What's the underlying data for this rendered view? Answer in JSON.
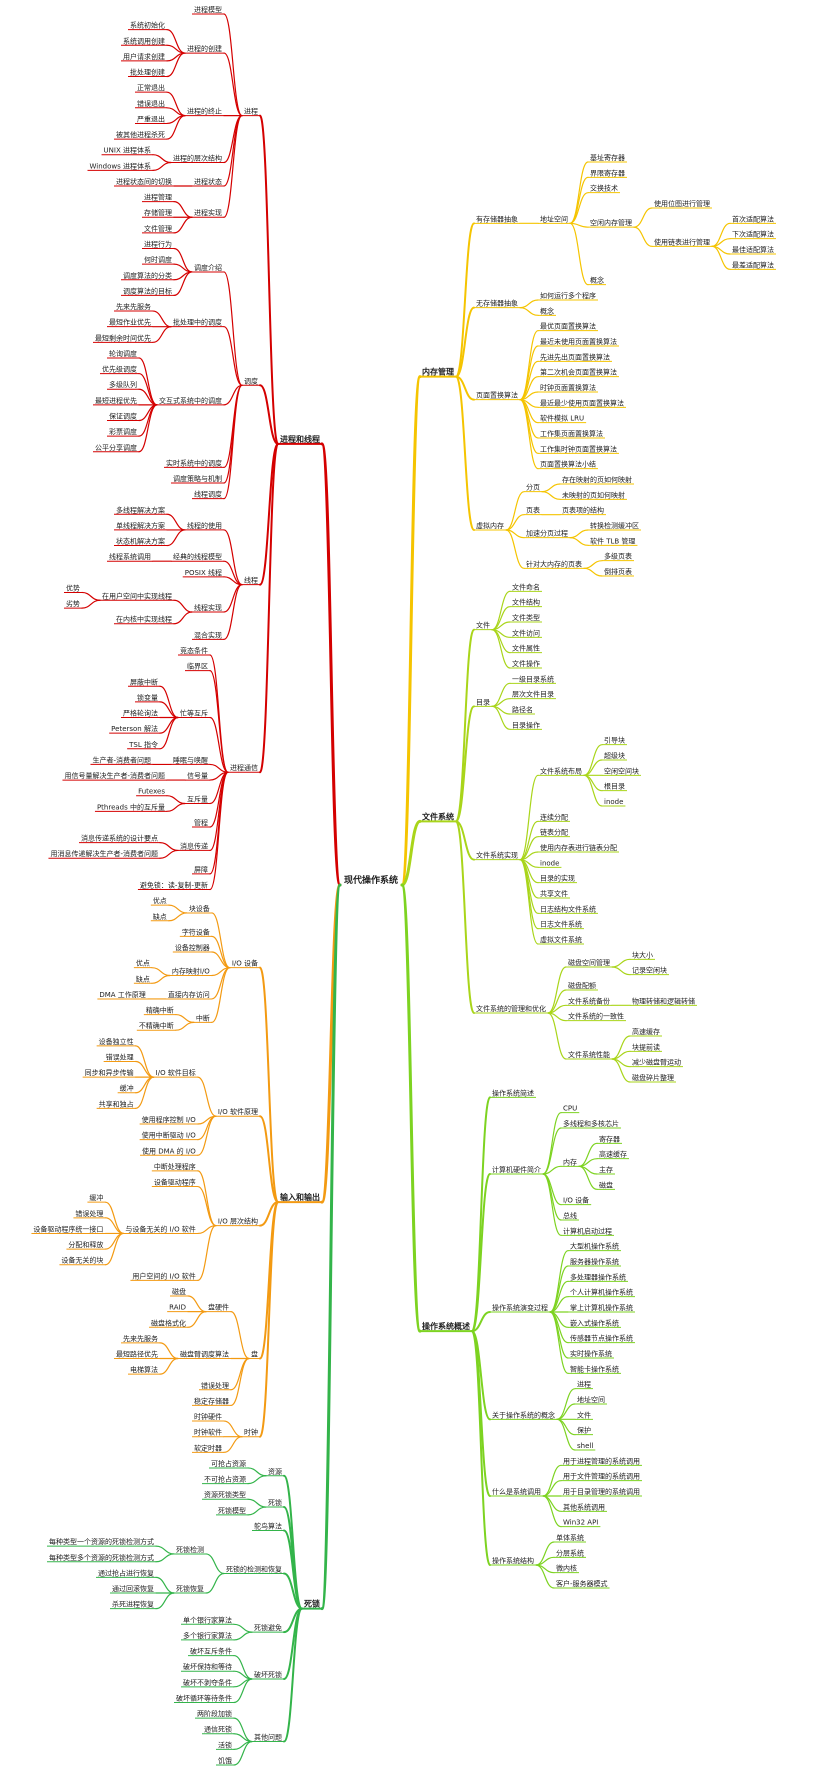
{
  "root": {
    "label": "现代操作系统",
    "left": [
      {
        "label": "进程和线程",
        "color": "#d40000",
        "children": [
          {
            "label": "进程",
            "children": [
              "进程模型",
              {
                "label": "进程的创建",
                "children": [
                  "系统初始化",
                  "系统调用创建",
                  "用户请求创建",
                  "批处理创建"
                ]
              },
              {
                "label": "进程的终止",
                "children": [
                  "正常退出",
                  "错误退出",
                  "严重退出",
                  "被其他进程杀死"
                ]
              },
              {
                "label": "进程的层次结构",
                "children": [
                  "UNIX 进程体系",
                  "Windows 进程体系"
                ]
              },
              {
                "label": "进程状态",
                "children": [
                  "进程状态间的切换"
                ]
              },
              {
                "label": "进程实现",
                "children": [
                  "进程管理",
                  "存储管理",
                  "文件管理"
                ]
              }
            ]
          },
          {
            "label": "调度",
            "children": [
              {
                "label": "调度介绍",
                "children": [
                  "进程行为",
                  "何时调度",
                  "调度算法的分类",
                  "调度算法的目标"
                ]
              },
              {
                "label": "批处理中的调度",
                "children": [
                  "先来先服务",
                  "最短作业优先",
                  "最短剩余时间优先"
                ]
              },
              {
                "label": "交互式系统中的调度",
                "children": [
                  "轮询调度",
                  "优先级调度",
                  "多级队列",
                  "最短进程优先",
                  "保证调度",
                  "彩票调度",
                  "公平分享调度"
                ]
              },
              "实时系统中的调度",
              "调度策略与机制",
              "线程调度"
            ]
          },
          {
            "label": "线程",
            "children": [
              {
                "label": "线程的使用",
                "children": [
                  "多线程解决方案",
                  "单线程解决方案",
                  "状态机解决方案"
                ]
              },
              {
                "label": "经典的线程模型",
                "children": [
                  "线程系统调用"
                ]
              },
              "POSIX 线程",
              {
                "label": "线程实现",
                "children": [
                  {
                    "label": "在用户空间中实现线程",
                    "children": [
                      "优势",
                      "劣势"
                    ]
                  },
                  "在内核中实现线程"
                ]
              },
              "混合实现"
            ]
          },
          {
            "label": "进程通信",
            "children": [
              "竞态条件",
              "临界区",
              {
                "label": "忙等互斥",
                "children": [
                  "屏蔽中断",
                  "锁变量",
                  "严格轮询法",
                  "Peterson 解法",
                  "TSL 指令"
                ]
              },
              {
                "label": "睡眠与唤醒",
                "children": [
                  "生产者-消费者问题"
                ]
              },
              {
                "label": "信号量",
                "children": [
                  "用信号量解决生产者-消费者问题"
                ]
              },
              {
                "label": "互斥量",
                "children": [
                  "Futexes",
                  "Pthreads 中的互斥量"
                ]
              },
              "管程",
              {
                "label": "消息传递",
                "children": [
                  "消息传递系统的设计要点",
                  "用消息传递解决生产者-消费者问题"
                ]
              },
              "屏障",
              "避免锁：读-复制-更新"
            ]
          }
        ]
      },
      {
        "label": "输入和输出",
        "color": "#f39a12",
        "children": [
          {
            "label": "I/O 设备",
            "children": [
              {
                "label": "块设备",
                "children": [
                  "优点",
                  "缺点"
                ]
              },
              "字符设备",
              "设备控制器",
              {
                "label": "内存映射I/O",
                "children": [
                  "优点",
                  "缺点"
                ]
              },
              {
                "label": "直接内存访问",
                "children": [
                  "DMA 工作原理"
                ]
              },
              {
                "label": "中断",
                "children": [
                  "精确中断",
                  "不精确中断"
                ]
              }
            ]
          },
          {
            "label": "I/O 软件原理",
            "children": [
              {
                "label": "I/O 软件目标",
                "children": [
                  "设备独立性",
                  "错误处理",
                  "同步和异步传输",
                  "缓冲",
                  "共享和独占"
                ]
              },
              "使用程序控制 I/O",
              "使用中断驱动 I/O",
              "使用 DMA 的 I/O"
            ]
          },
          {
            "label": "I/O 层次结构",
            "children": [
              "中断处理程序",
              "设备驱动程序",
              {
                "label": "与设备无关的 I/O 软件",
                "children": [
                  "缓冲",
                  "错误处理",
                  "设备驱动程序统一接口",
                  "分配和释放",
                  "设备无关的块"
                ]
              },
              "用户空间的 I/O 软件"
            ]
          },
          {
            "label": "盘",
            "children": [
              {
                "label": "盘硬件",
                "children": [
                  "磁盘",
                  "RAID",
                  "磁盘格式化"
                ]
              },
              {
                "label": "磁盘臂调度算法",
                "children": [
                  "先来先服务",
                  "最短路径优先",
                  "电梯算法"
                ]
              },
              "错误处理",
              "稳定存储器"
            ]
          },
          {
            "label": "时钟",
            "children": [
              "时钟硬件",
              "时钟软件",
              "软定时器"
            ]
          }
        ]
      },
      {
        "label": "死锁",
        "color": "#33b44a",
        "children": [
          {
            "label": "资源",
            "children": [
              "可抢占资源",
              "不可抢占资源"
            ]
          },
          {
            "label": "死锁",
            "children": [
              "资源死锁类型",
              "死锁模型"
            ]
          },
          "鸵鸟算法",
          {
            "label": "死锁的检测和恢复",
            "children": [
              {
                "label": "死锁检测",
                "children": [
                  "每种类型一个资源的死锁检测方式",
                  "每种类型多个资源的死锁检测方式"
                ]
              },
              {
                "label": "死锁恢复",
                "children": [
                  "通过抢占进行恢复",
                  "通过回滚恢复",
                  "杀死进程恢复"
                ]
              }
            ]
          },
          {
            "label": "死锁避免",
            "children": [
              "单个银行家算法",
              "多个银行家算法"
            ]
          },
          {
            "label": "破坏死锁",
            "children": [
              "破坏互斥条件",
              "破坏保持和等待",
              "破坏不剥夺条件",
              "破坏循环等待条件"
            ]
          },
          {
            "label": "其他问题",
            "children": [
              "两阶段加锁",
              "通信死锁",
              "活锁",
              "饥饿"
            ]
          }
        ]
      }
    ],
    "right": [
      {
        "label": "内存管理",
        "color": "#f5c400",
        "children": [
          {
            "label": "有存储器抽象",
            "children": [
              {
                "label": "地址空间",
                "children": [
                  "基址寄存器",
                  "界限寄存器",
                  "交换技术",
                  {
                    "label": "空闲内存管理",
                    "children": [
                      "使用位图进行管理",
                      {
                        "label": "使用链表进行管理",
                        "children": [
                          "首次适配算法",
                          "下次适配算法",
                          "最佳适配算法",
                          "最差适配算法"
                        ]
                      }
                    ]
                  },
                  "概念"
                ]
              }
            ]
          },
          {
            "label": "无存储器抽象",
            "children": [
              "如何运行多个程序",
              "概念"
            ]
          },
          {
            "label": "页面置换算法",
            "children": [
              "最优页面置换算法",
              "最近未使用页面置换算法",
              "先进先出页面置换算法",
              "第二次机会页面置换算法",
              "时钟页面置换算法",
              "最近最少使用页面置换算法",
              "软件模拟 LRU",
              "工作集页面置换算法",
              "工作集时钟页面置换算法",
              "页面置换算法小结"
            ]
          },
          {
            "label": "虚拟内存",
            "children": [
              {
                "label": "分页",
                "children": [
                  "存在映射的页如何映射",
                  "未映射的页如何映射"
                ]
              },
              {
                "label": "页表",
                "children": [
                  "页表项的结构"
                ]
              },
              {
                "label": "加速分页过程",
                "children": [
                  "转换检测缓冲区",
                  "软件 TLB 管理"
                ]
              },
              {
                "label": "针对大内存的页表",
                "children": [
                  "多级页表",
                  "倒排页表"
                ]
              }
            ]
          }
        ]
      },
      {
        "label": "文件系统",
        "color": "#a9d51a",
        "children": [
          {
            "label": "文件",
            "children": [
              "文件命名",
              "文件结构",
              "文件类型",
              "文件访问",
              "文件属性",
              "文件操作"
            ]
          },
          {
            "label": "目录",
            "children": [
              "一级目录系统",
              "层次文件目录",
              "路径名",
              "目录操作"
            ]
          },
          {
            "label": "文件系统实现",
            "children": [
              {
                "label": "文件系统布局",
                "children": [
                  "引导块",
                  "超级块",
                  "空闲空间块",
                  "根目录",
                  "inode"
                ]
              },
              "连续分配",
              "链表分配",
              "使用内存表进行链表分配",
              "inode",
              "目录的实现",
              "共享文件",
              "日志结构文件系统",
              "日志文件系统",
              "虚拟文件系统"
            ]
          },
          {
            "label": "文件系统的管理和优化",
            "children": [
              {
                "label": "磁盘空间管理",
                "children": [
                  "块大小",
                  "记录空闲块"
                ]
              },
              "磁盘配额",
              {
                "label": "文件系统备份",
                "children": [
                  "物理转储和逻辑转储"
                ]
              },
              "文件系统的一致性",
              {
                "label": "文件系统性能",
                "children": [
                  "高速缓存",
                  "块提前读",
                  "减少磁盘臂运动",
                  "磁盘碎片整理"
                ]
              }
            ]
          }
        ]
      },
      {
        "label": "操作系统概述",
        "color": "#7dd321",
        "children": [
          "操作系统简述",
          {
            "label": "计算机硬件简介",
            "children": [
              "CPU",
              "多线程和多核芯片",
              {
                "label": "内存",
                "children": [
                  "寄存器",
                  "高速缓存",
                  "主存",
                  "磁盘"
                ]
              },
              "I/O 设备",
              "总线",
              "计算机启动过程"
            ]
          },
          {
            "label": "操作系统演变过程",
            "children": [
              "大型机操作系统",
              "服务器操作系统",
              "多处理器操作系统",
              "个人计算机操作系统",
              "掌上计算机操作系统",
              "嵌入式操作系统",
              "传感器节点操作系统",
              "实时操作系统",
              "智能卡操作系统"
            ]
          },
          {
            "label": "关于操作系统的概念",
            "children": [
              "进程",
              "地址空间",
              "文件",
              "保护",
              "shell"
            ]
          },
          {
            "label": "什么是系统调用",
            "children": [
              "用于进程管理的系统调用",
              "用于文件管理的系统调用",
              "用于目录管理的系统调用",
              "其他系统调用",
              "Win32 API"
            ]
          },
          {
            "label": "操作系统结构",
            "children": [
              "单体系统",
              "分层系统",
              "微内核",
              "客户-服务器模式"
            ]
          }
        ]
      }
    ]
  }
}
